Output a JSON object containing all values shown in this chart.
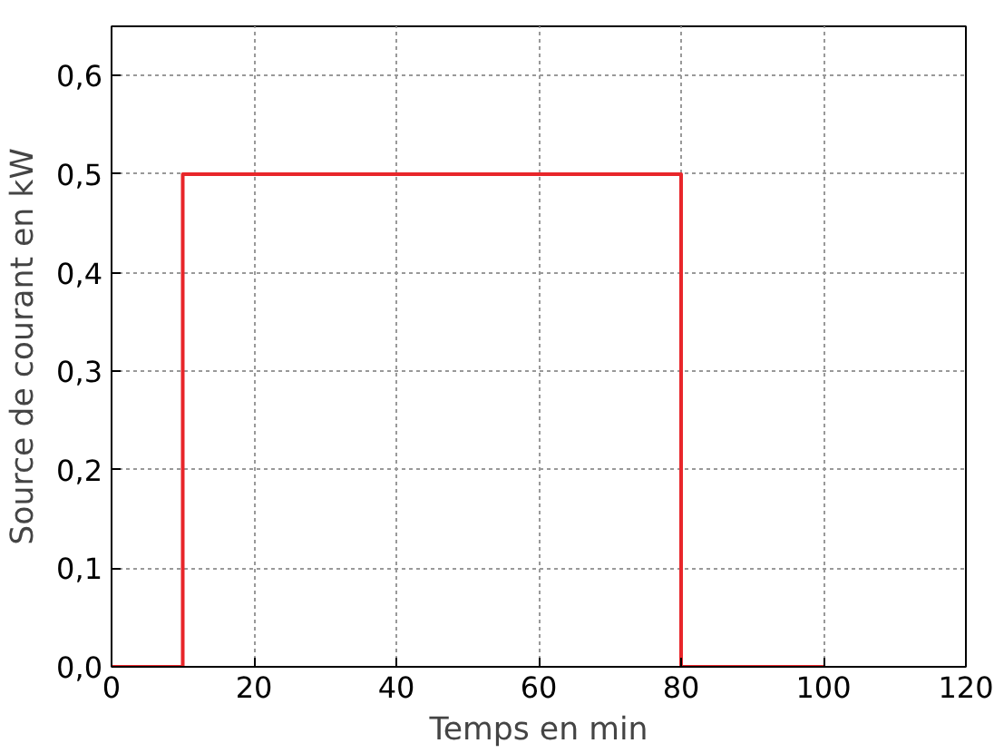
{
  "chart_data": {
    "type": "line",
    "xlabel": "Temps en min",
    "ylabel": "Source de courant en kW",
    "x": [
      0,
      10,
      10,
      80,
      80,
      100
    ],
    "series": [
      {
        "color": "#e8262a",
        "values": [
          0,
          0,
          0.5,
          0.5,
          0,
          0
        ]
      }
    ],
    "xlim": [
      0,
      120
    ],
    "xticks": [
      0,
      20,
      40,
      60,
      80,
      100,
      120
    ],
    "ylim": [
      0,
      0.65
    ],
    "yticks": [
      {
        "value": 0,
        "label": "0,0"
      },
      {
        "value": 0.1,
        "label": "0,1"
      },
      {
        "value": 0.2,
        "label": "0,2"
      },
      {
        "value": 0.3,
        "label": "0,3"
      },
      {
        "value": 0.4,
        "label": "0,4"
      },
      {
        "value": 0.5,
        "label": "0,5"
      },
      {
        "value": 0.6,
        "label": "0,6"
      }
    ],
    "grid": true,
    "line_style": "solid",
    "marker": "none"
  }
}
